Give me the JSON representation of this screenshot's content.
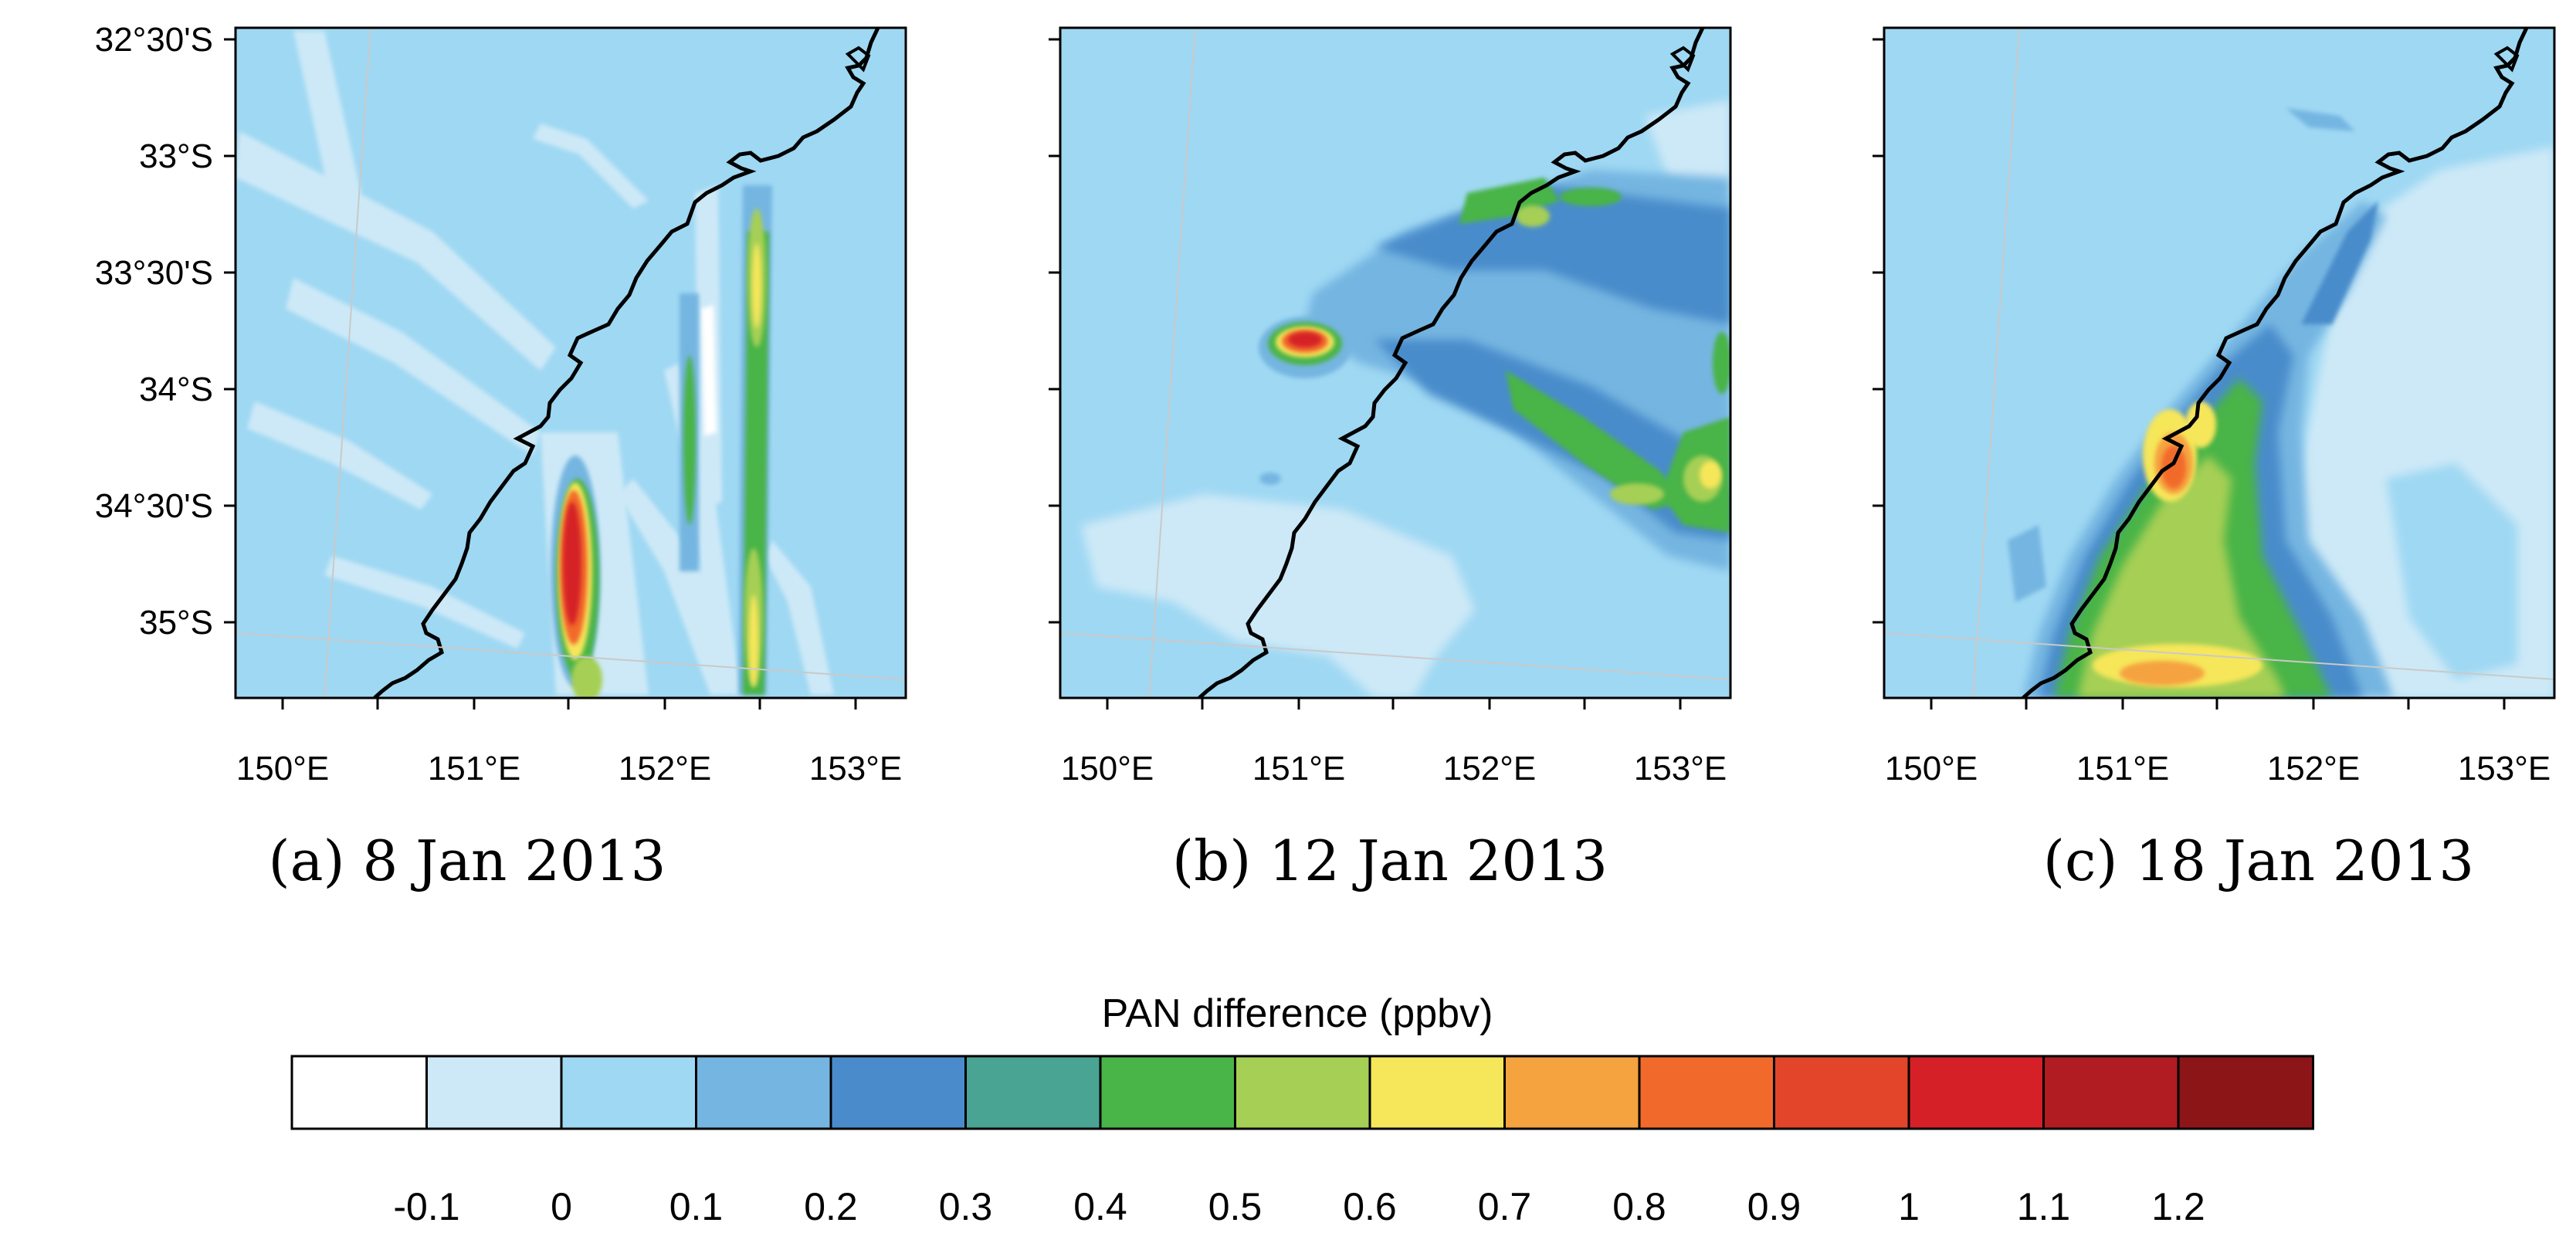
{
  "figure": {
    "lat_labels": [
      "32°30'S",
      "33°S",
      "33°30'S",
      "34°S",
      "34°30'S",
      "35°S"
    ],
    "lon_labels": [
      "150°E",
      "151°E",
      "152°E",
      "153°E"
    ],
    "panels": [
      {
        "id": "a",
        "caption": "(a) 8 Jan 2013"
      },
      {
        "id": "b",
        "caption": "(b) 12 Jan 2013"
      },
      {
        "id": "c",
        "caption": "(c) 18 Jan 2013"
      }
    ],
    "colorbar": {
      "title": "PAN difference    (ppbv)",
      "colors": [
        "#ffffff",
        "#cde9f7",
        "#9fd8f3",
        "#74b5e1",
        "#4a8ccb",
        "#4aa493",
        "#49b447",
        "#a6cf55",
        "#f6e65a",
        "#f5a33f",
        "#f26a2b",
        "#e3452b",
        "#d52028",
        "#b01c22",
        "#8c1518"
      ],
      "labels": [
        "-0.1",
        "0",
        "0.1",
        "0.2",
        "0.3",
        "0.4",
        "0.5",
        "0.6",
        "0.7",
        "0.8",
        "0.9",
        "1",
        "1.1",
        "1.2"
      ]
    }
  }
}
